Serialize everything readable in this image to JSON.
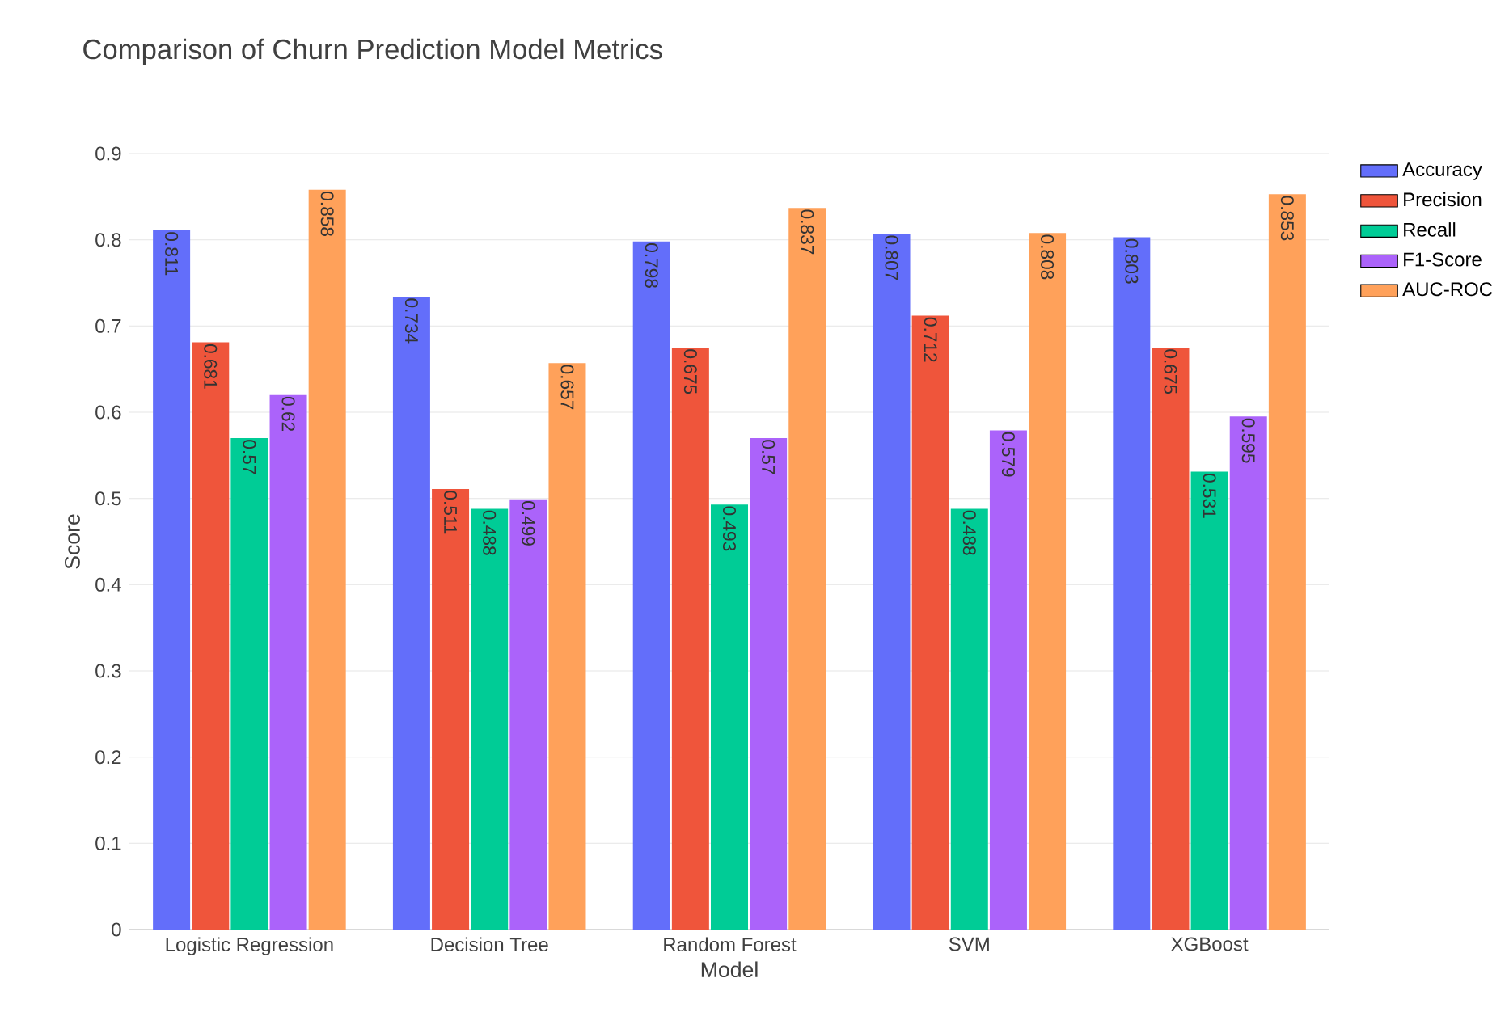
{
  "chart_data": {
    "type": "bar",
    "title": "Comparison of Churn Prediction Model Metrics",
    "xlabel": "Model",
    "ylabel": "Score",
    "categories": [
      "Logistic Regression",
      "Decision Tree",
      "Random Forest",
      "SVM",
      "XGBoost"
    ],
    "series": [
      {
        "name": "Accuracy",
        "color": "#636efa",
        "values": [
          0.811,
          0.734,
          0.798,
          0.807,
          0.803
        ]
      },
      {
        "name": "Precision",
        "color": "#ef553b",
        "values": [
          0.681,
          0.511,
          0.675,
          0.712,
          0.675
        ]
      },
      {
        "name": "Recall",
        "color": "#00cc96",
        "values": [
          0.57,
          0.488,
          0.493,
          0.488,
          0.531
        ]
      },
      {
        "name": "F1-Score",
        "color": "#ab63fa",
        "values": [
          0.62,
          0.499,
          0.57,
          0.579,
          0.595
        ]
      },
      {
        "name": "AUC-ROC",
        "color": "#ffa15a",
        "values": [
          0.858,
          0.657,
          0.837,
          0.808,
          0.853
        ]
      }
    ],
    "data_labels": true,
    "ylim": [
      0,
      0.9
    ],
    "yticks": [
      0,
      0.1,
      0.2,
      0.3,
      0.4,
      0.5,
      0.6,
      0.7,
      0.8,
      0.9
    ],
    "grid": "y",
    "legend": "top right"
  }
}
